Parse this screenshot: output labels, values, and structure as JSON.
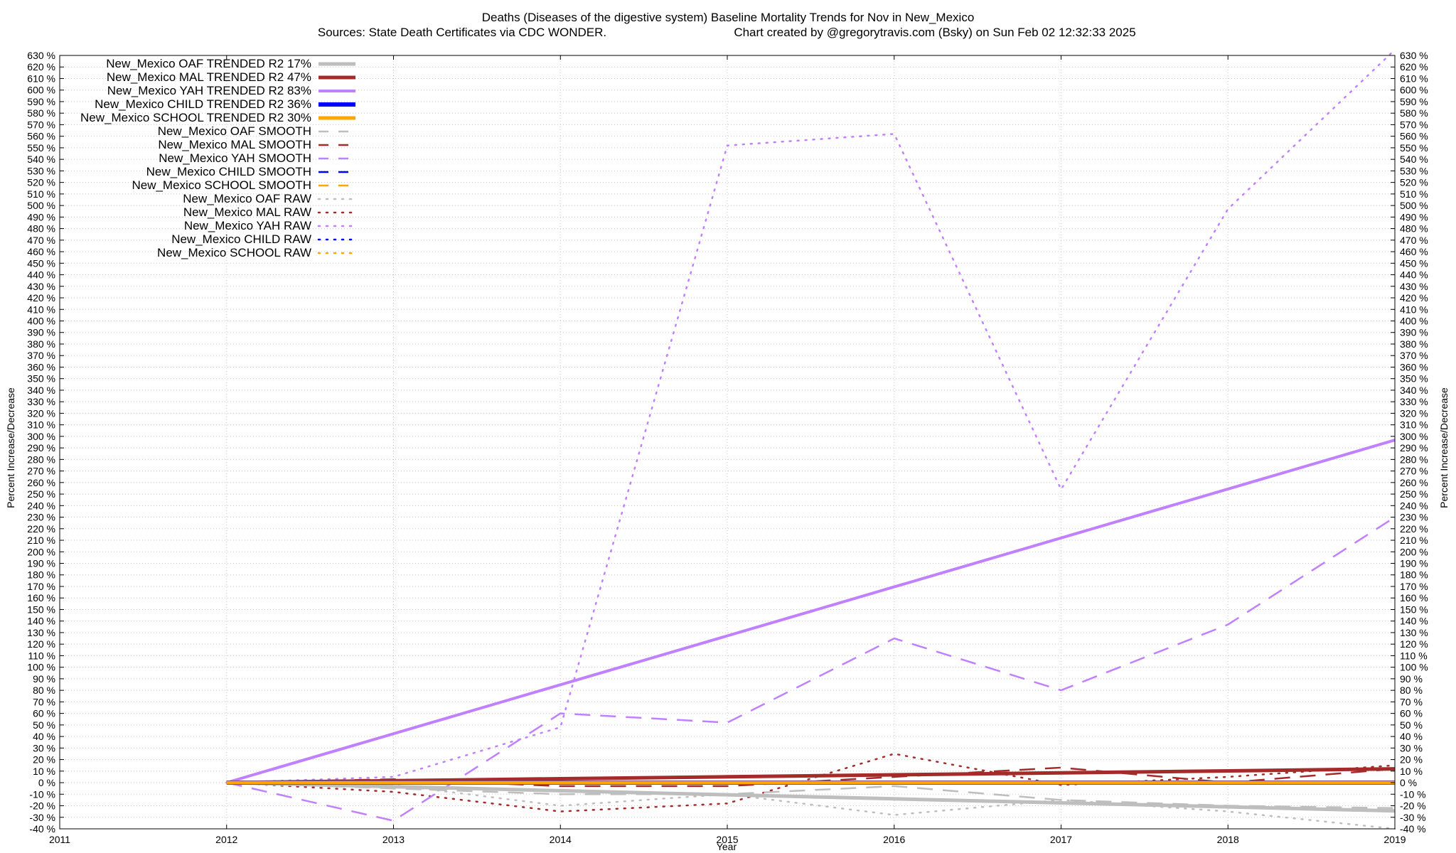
{
  "title": "Deaths (Diseases of the digestive system)  Baseline Mortality Trends for Nov in New_Mexico",
  "subtitle_left": "Sources: State Death Certificates via CDC WONDER.",
  "subtitle_right": "Chart created by @gregorytravis.com (Bsky) on Sun Feb 02 12:32:33 2025",
  "chart_data": {
    "type": "line",
    "xlabel": "Year",
    "ylabel": "Percent Increase/Decrease",
    "y2label": "Percent Increase/Decrease",
    "xlim": [
      2011,
      2019
    ],
    "ylim": [
      -40,
      630
    ],
    "x_ticks": [
      2011,
      2012,
      2013,
      2014,
      2015,
      2016,
      2017,
      2018,
      2019
    ],
    "y_tick_step": 10,
    "y_tick_suffix": " %",
    "grid": true,
    "legend_position": "top-left",
    "x": [
      2012,
      2013,
      2014,
      2015,
      2016,
      2017,
      2018,
      2019
    ],
    "series": [
      {
        "name": "New_Mexico OAF TRENDED R2  17%",
        "color": "#bebebe",
        "style": "solid",
        "width": 5,
        "values": [
          0,
          -3.5,
          -7,
          -10.5,
          -14,
          -17.5,
          -21,
          -24.5
        ]
      },
      {
        "name": "New_Mexico MAL TRENDED R2  47%",
        "color": "#a52a2a",
        "style": "solid",
        "width": 5,
        "values": [
          0,
          1.7,
          3.4,
          5.1,
          6.8,
          8.5,
          10.2,
          12
        ]
      },
      {
        "name": "New_Mexico YAH TRENDED R2  83%",
        "color": "#c080ff",
        "style": "solid",
        "width": 4,
        "values": [
          0,
          42.4,
          84.8,
          127.2,
          169.6,
          212,
          254.4,
          296.8
        ]
      },
      {
        "name": "New_Mexico CHILD TRENDED R2  36%",
        "color": "#0000ff",
        "style": "solid",
        "width": 6,
        "values": [
          0,
          0,
          0,
          0,
          0,
          0,
          0,
          0
        ]
      },
      {
        "name": "New_Mexico SCHOOL TRENDED R2  30%",
        "color": "#ffa500",
        "style": "solid",
        "width": 5,
        "values": [
          0,
          0,
          0,
          0,
          0,
          0,
          0,
          0
        ]
      },
      {
        "name": "New_Mexico OAF SMOOTH",
        "color": "#bebebe",
        "style": "dashed",
        "width": 2.5,
        "values": [
          0,
          -5,
          -10,
          -10,
          -3,
          -15,
          -20,
          -22
        ]
      },
      {
        "name": "New_Mexico MAL SMOOTH",
        "color": "#a52a2a",
        "style": "dashed",
        "width": 2.5,
        "values": [
          0,
          3,
          -3,
          -3,
          5,
          13,
          0,
          12
        ]
      },
      {
        "name": "New_Mexico YAH SMOOTH",
        "color": "#c080ff",
        "style": "dashed",
        "width": 2.5,
        "values": [
          0,
          -33,
          60,
          52,
          125,
          80,
          137,
          230
        ]
      },
      {
        "name": "New_Mexico CHILD SMOOTH",
        "color": "#0000ff",
        "style": "dashed",
        "width": 2.5,
        "values": [
          0,
          0,
          0,
          0,
          0,
          0,
          0,
          0
        ]
      },
      {
        "name": "New_Mexico SCHOOL SMOOTH",
        "color": "#ffa500",
        "style": "dashed",
        "width": 2.5,
        "values": [
          0,
          0,
          0,
          0,
          0,
          0,
          0,
          0
        ]
      },
      {
        "name": "New_Mexico OAF RAW",
        "color": "#bebebe",
        "style": "dotted",
        "width": 2.5,
        "values": [
          0,
          -2,
          -20,
          -10,
          -28,
          -15,
          -25,
          -40
        ]
      },
      {
        "name": "New_Mexico MAL RAW",
        "color": "#a52a2a",
        "style": "dotted",
        "width": 2.5,
        "values": [
          0,
          -8,
          -25,
          -18,
          25,
          -2,
          5,
          15
        ]
      },
      {
        "name": "New_Mexico YAH RAW",
        "color": "#c080ff",
        "style": "dotted",
        "width": 2.5,
        "values": [
          0,
          5,
          48,
          552,
          562,
          254,
          497,
          635
        ]
      },
      {
        "name": "New_Mexico CHILD RAW",
        "color": "#0000ff",
        "style": "dotted",
        "width": 2.5,
        "values": [
          0,
          0,
          0,
          0,
          0,
          0,
          0,
          0
        ]
      },
      {
        "name": "New_Mexico SCHOOL RAW",
        "color": "#ffa500",
        "style": "dotted",
        "width": 2.5,
        "values": [
          0,
          0,
          0,
          0,
          0,
          0,
          0,
          0
        ]
      }
    ]
  }
}
